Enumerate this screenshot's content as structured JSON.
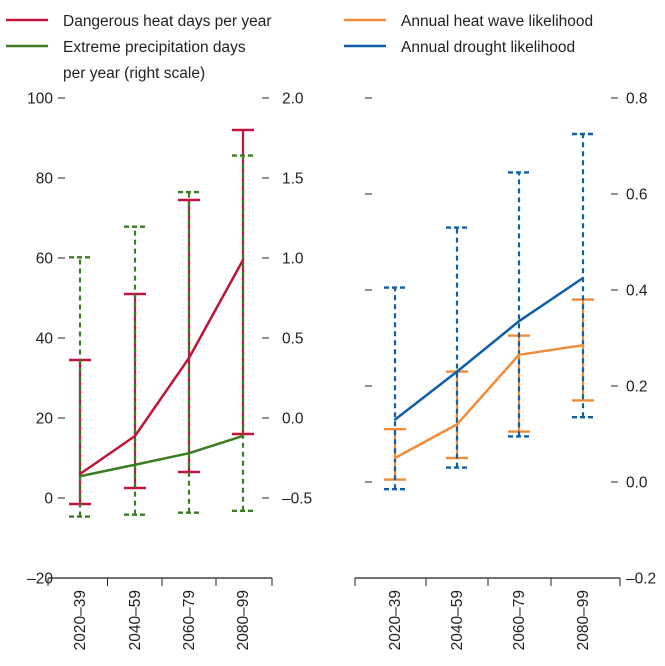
{
  "chart_data": [
    {
      "type": "line",
      "categories": [
        "2020–39",
        "2040–59",
        "2060–79",
        "2080–99"
      ],
      "y_left": {
        "range": [
          -20,
          100
        ],
        "ticks": [
          "100",
          "80",
          "60",
          "40",
          "20",
          "0",
          "–20"
        ]
      },
      "y_right": {
        "range": [
          -0.5,
          2.0
        ],
        "ticks": [
          "2.0",
          "1.5",
          "1.0",
          "0.5",
          "0.0",
          "–0.5"
        ]
      },
      "series": [
        {
          "name": "Dangerous heat days per year",
          "axis": "left",
          "color": "#c0143c",
          "values": [
            6,
            15.5,
            35,
            59.5
          ],
          "whisker_low": [
            -1.5,
            2.5,
            6.5,
            16
          ],
          "whisker_high": [
            34.5,
            51,
            74.5,
            92
          ],
          "whisker_style": "solid"
        },
        {
          "name": "Extreme precipitation days per year (right scale)",
          "name_lines": [
            "Extreme precipitation days",
            "per year (right scale)"
          ],
          "axis": "right",
          "color": "#3a7d22",
          "values": [
            0.03,
            0.09,
            0.15,
            0.24
          ],
          "whisker_low": [
            -0.18,
            -0.17,
            -0.16,
            -0.15
          ],
          "whisker_high": [
            1.17,
            1.33,
            1.51,
            1.7
          ],
          "whisker_style": "dashed"
        }
      ]
    },
    {
      "type": "line",
      "categories": [
        "2020–39",
        "2040–59",
        "2060–79",
        "2080–99"
      ],
      "y_left": {
        "range": [
          -0.2,
          0.8
        ],
        "ticks": [
          "",
          "",
          "",
          "",
          "",
          ""
        ]
      },
      "y_right": {
        "range": [
          -0.2,
          0.8
        ],
        "ticks": [
          "0.8",
          "0.6",
          "0.4",
          "0.2",
          "0.0",
          "–0.2"
        ]
      },
      "series": [
        {
          "name": "Annual heat wave likelihood",
          "axis": "right",
          "color": "#f28c38",
          "values": [
            0.05,
            0.12,
            0.265,
            0.285
          ],
          "whisker_low": [
            0.005,
            0.05,
            0.105,
            0.17
          ],
          "whisker_high": [
            0.11,
            0.23,
            0.305,
            0.38
          ],
          "whisker_style": "solid"
        },
        {
          "name": "Annual drought likelihood",
          "axis": "right",
          "color": "#0f5fa8",
          "values": [
            0.13,
            0.23,
            0.335,
            0.425
          ],
          "whisker_low": [
            -0.015,
            0.03,
            0.095,
            0.135
          ],
          "whisker_high": [
            0.405,
            0.53,
            0.645,
            0.725
          ],
          "whisker_style": "dashed"
        }
      ]
    }
  ]
}
